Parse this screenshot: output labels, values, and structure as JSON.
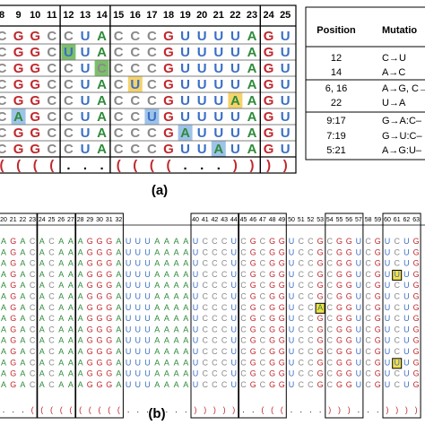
{
  "panel_a": {
    "label": "(a)",
    "columns": [
      8,
      9,
      10,
      11,
      12,
      13,
      14,
      15,
      16,
      17,
      18,
      19,
      20,
      21,
      22,
      23,
      24,
      25
    ],
    "rows": [
      "CGGCCUACCCGUUUUAGU",
      "CGGCUUACCCGUUUUAGU",
      "CGGCCUCCCCGUUUUAGU",
      "CGGCCUACUCGUUUUAGU",
      "CGGCCUACCCGUUUAAGU",
      "CAGCCUACCUGUUUUAGU",
      "CGGCCUACCCGAUUUAGU",
      "CGGCCUACCCGUUAUAGU"
    ],
    "highlights": [
      {
        "row": 1,
        "col": 4,
        "color": "#7cbf6a"
      },
      {
        "row": 2,
        "col": 6,
        "color": "#7cbf6a"
      },
      {
        "row": 3,
        "col": 8,
        "color": "#f5d36b"
      },
      {
        "row": 4,
        "col": 14,
        "color": "#f5d36b"
      },
      {
        "row": 5,
        "col": 1,
        "color": "#9ec3e8"
      },
      {
        "row": 5,
        "col": 9,
        "color": "#9ec3e8"
      },
      {
        "row": 6,
        "col": 11,
        "color": "#9ec3e8"
      },
      {
        "row": 7,
        "col": 13,
        "color": "#9ec3e8"
      }
    ],
    "structure": "((((...((((...))))"
  },
  "mutation_table": {
    "headers": [
      "Position",
      "Mutatio"
    ],
    "rows": [
      [
        "12",
        "C→U"
      ],
      [
        "14",
        "A→C"
      ],
      [
        "6, 16",
        "A→G, C→"
      ],
      [
        "22",
        "U→A"
      ],
      [
        "9:17",
        "G→A:C–"
      ],
      [
        "7:19",
        "G→U:C–"
      ],
      [
        "5:21",
        "A→G:U–"
      ]
    ]
  },
  "panel_b": {
    "label": "(b)",
    "columns": [
      20,
      21,
      22,
      23,
      24,
      25,
      26,
      27,
      28,
      29,
      30,
      31,
      32,
      null,
      null,
      null,
      null,
      null,
      null,
      null,
      40,
      41,
      42,
      43,
      44,
      45,
      46,
      47,
      48,
      49,
      50,
      51,
      52,
      53,
      54,
      55,
      56,
      57,
      58,
      59,
      60,
      61,
      62,
      63
    ],
    "rows": [
      "AGACACAAAGGGAUUUAAAAUCCCUCGCGGUCCGCGGUCGUCUG",
      "AGACACAAAGGGAUUUAAAAUCCCUCGCGGUCCGCGGUCGUCUG",
      "AGACACAAAGGGAUUUAAAAUCCCUCGCGGUCCGCGGUCGUCUG",
      "AGACACAAAGGGAUUUAAAAUCCCUCGCGGUCCGCGGUCGUUUG",
      "AGACACAAAGGGAUUUAAAAUCCCUCGCGGUCCGCGGUCGUCUG",
      "AGACACAAAGGGAUUUAAAAUCCCUCGCGGUCCGCGGUCGUCUG",
      "AGACACAAAGGGAUUUAAAAUCCCUCGCGGUCCACGGUCGUCUG",
      "AGACACAAAGGGAUUUAAAAUCCCUCGCGGUCCGCGGUCGUCUG",
      "AGACACAAAGGGAUUUAAAAUCCCUCGCGGUCCGCGGUCGUCUG",
      "AGACACAAAGGGAUUUAAAAUCCCUCGCGGUCCGCGGUCGUCUG",
      "AGACACAAAGGGAUUUAAAAUCCCUCGCGGUCCGCGGUCGUCUG",
      "AGACACAAAGGGAUUUAAAAUCCCUCGCGGUCCGCGGUCGUUUG",
      "AGACACAAAGGGAUUUAAAAUCCCUCGCGGUCCGCGGUCGUCUG",
      "AGACACAAAGGGAUUUAAAAUCCCUCGCGGUCCGCGGUCGUCUG"
    ],
    "highlights": [
      {
        "row": 3,
        "col": 41,
        "color": "#f2e04a"
      },
      {
        "row": 6,
        "col": 33,
        "color": "#f2e04a"
      },
      {
        "row": 11,
        "col": 41,
        "color": "#f2e04a"
      }
    ],
    "structure": "...((((((((((.......)))))..(((....)))...))))"
  }
}
